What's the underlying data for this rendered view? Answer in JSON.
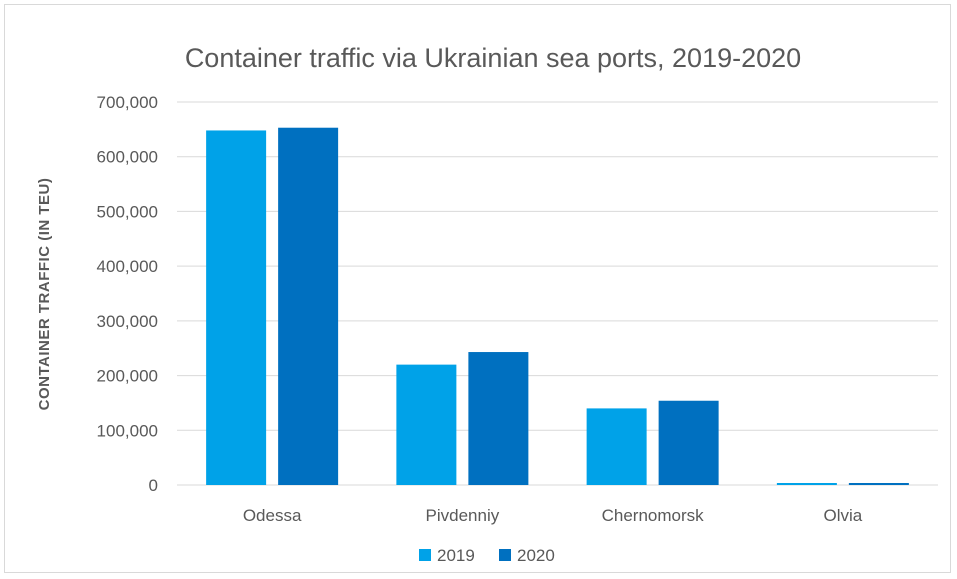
{
  "chart_data": {
    "type": "bar",
    "title": "Container traffic via Ukrainian sea ports, 2019-2020",
    "xlabel": "",
    "ylabel": "CONTAINER TRAFFIC (IN TEU)",
    "categories": [
      "Odessa",
      "Pivdenniy",
      "Chernomorsk",
      "Olvia"
    ],
    "series": [
      {
        "name": "2019",
        "color": "#00a2e8",
        "values": [
          648000,
          220000,
          140000,
          1500
        ]
      },
      {
        "name": "2020",
        "color": "#0070c0",
        "values": [
          653000,
          243000,
          154000,
          1800
        ]
      }
    ],
    "ylim": [
      0,
      700000
    ],
    "yticks": [
      "0",
      "100,000",
      "200,000",
      "300,000",
      "400,000",
      "500,000",
      "600,000",
      "700,000"
    ],
    "grid": true,
    "legend": "bottom"
  }
}
